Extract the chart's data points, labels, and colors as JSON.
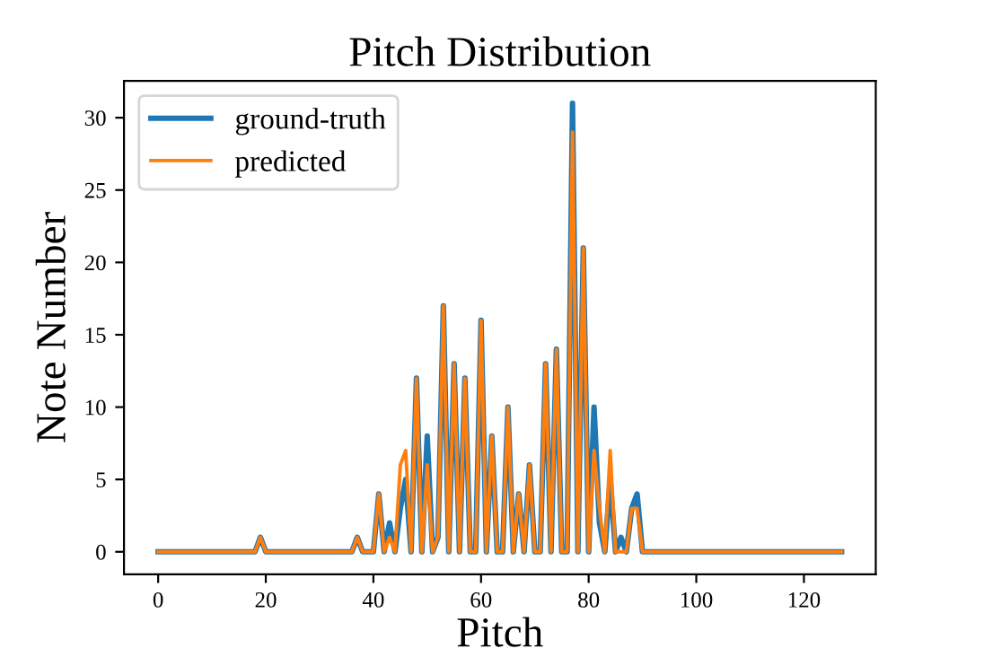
{
  "chart_data": {
    "type": "line",
    "title": "Pitch Distribution",
    "xlabel": "Pitch",
    "ylabel": "Note Number",
    "x": [
      0,
      1,
      2,
      3,
      4,
      5,
      6,
      7,
      8,
      9,
      10,
      11,
      12,
      13,
      14,
      15,
      16,
      17,
      18,
      19,
      20,
      21,
      22,
      23,
      24,
      25,
      26,
      27,
      28,
      29,
      30,
      31,
      32,
      33,
      34,
      35,
      36,
      37,
      38,
      39,
      40,
      41,
      42,
      43,
      44,
      45,
      46,
      47,
      48,
      49,
      50,
      51,
      52,
      53,
      54,
      55,
      56,
      57,
      58,
      59,
      60,
      61,
      62,
      63,
      64,
      65,
      66,
      67,
      68,
      69,
      70,
      71,
      72,
      73,
      74,
      75,
      76,
      77,
      78,
      79,
      80,
      81,
      82,
      83,
      84,
      85,
      86,
      87,
      88,
      89,
      90,
      91,
      92,
      93,
      94,
      95,
      96,
      97,
      98,
      99,
      100,
      101,
      102,
      103,
      104,
      105,
      106,
      107,
      108,
      109,
      110,
      111,
      112,
      113,
      114,
      115,
      116,
      117,
      118,
      119,
      120,
      121,
      122,
      123,
      124,
      125,
      126,
      127
    ],
    "series": [
      {
        "name": "ground-truth",
        "color": "#1f77b4",
        "values": [
          0,
          0,
          0,
          0,
          0,
          0,
          0,
          0,
          0,
          0,
          0,
          0,
          0,
          0,
          0,
          0,
          0,
          0,
          0,
          1,
          0,
          0,
          0,
          0,
          0,
          0,
          0,
          0,
          0,
          0,
          0,
          0,
          0,
          0,
          0,
          0,
          0,
          1,
          0,
          0,
          0,
          4,
          0,
          2,
          0,
          3,
          5,
          0,
          12,
          0,
          8,
          0,
          1,
          17,
          0,
          13,
          0,
          12,
          0,
          0,
          16,
          0,
          8,
          0,
          0,
          10,
          0,
          4,
          0,
          6,
          0,
          0,
          13,
          0,
          14,
          0,
          0,
          31,
          0,
          21,
          0,
          10,
          2,
          0,
          5,
          0,
          1,
          0,
          3,
          4,
          0,
          0,
          0,
          0,
          0,
          0,
          0,
          0,
          0,
          0,
          0,
          0,
          0,
          0,
          0,
          0,
          0,
          0,
          0,
          0,
          0,
          0,
          0,
          0,
          0,
          0,
          0,
          0,
          0,
          0,
          0,
          0,
          0,
          0,
          0,
          0,
          0,
          0
        ]
      },
      {
        "name": "predicted",
        "color": "#ff7f0e",
        "values": [
          0,
          0,
          0,
          0,
          0,
          0,
          0,
          0,
          0,
          0,
          0,
          0,
          0,
          0,
          0,
          0,
          0,
          0,
          0,
          1,
          0,
          0,
          0,
          0,
          0,
          0,
          0,
          0,
          0,
          0,
          0,
          0,
          0,
          0,
          0,
          0,
          0,
          1,
          0,
          0,
          0,
          4,
          0,
          1,
          0,
          6,
          7,
          0,
          12,
          0,
          6,
          0,
          1,
          17,
          0,
          13,
          0,
          12,
          0,
          0,
          16,
          0,
          8,
          0,
          0,
          10,
          0,
          4,
          0,
          6,
          0,
          0,
          13,
          0,
          14,
          0,
          0,
          29,
          0,
          21,
          0,
          7,
          3,
          0,
          7,
          0,
          0,
          0,
          3,
          3,
          0,
          0,
          0,
          0,
          0,
          0,
          0,
          0,
          0,
          0,
          0,
          0,
          0,
          0,
          0,
          0,
          0,
          0,
          0,
          0,
          0,
          0,
          0,
          0,
          0,
          0,
          0,
          0,
          0,
          0,
          0,
          0,
          0,
          0,
          0,
          0,
          0,
          0
        ]
      }
    ],
    "xlim": [
      -6.35,
      133.35
    ],
    "ylim": [
      -1.55,
      32.55
    ],
    "xticks": [
      0,
      20,
      40,
      60,
      80,
      100,
      120
    ],
    "yticks": [
      0,
      5,
      10,
      15,
      20,
      25,
      30
    ],
    "grid": false,
    "legend": "top left"
  }
}
